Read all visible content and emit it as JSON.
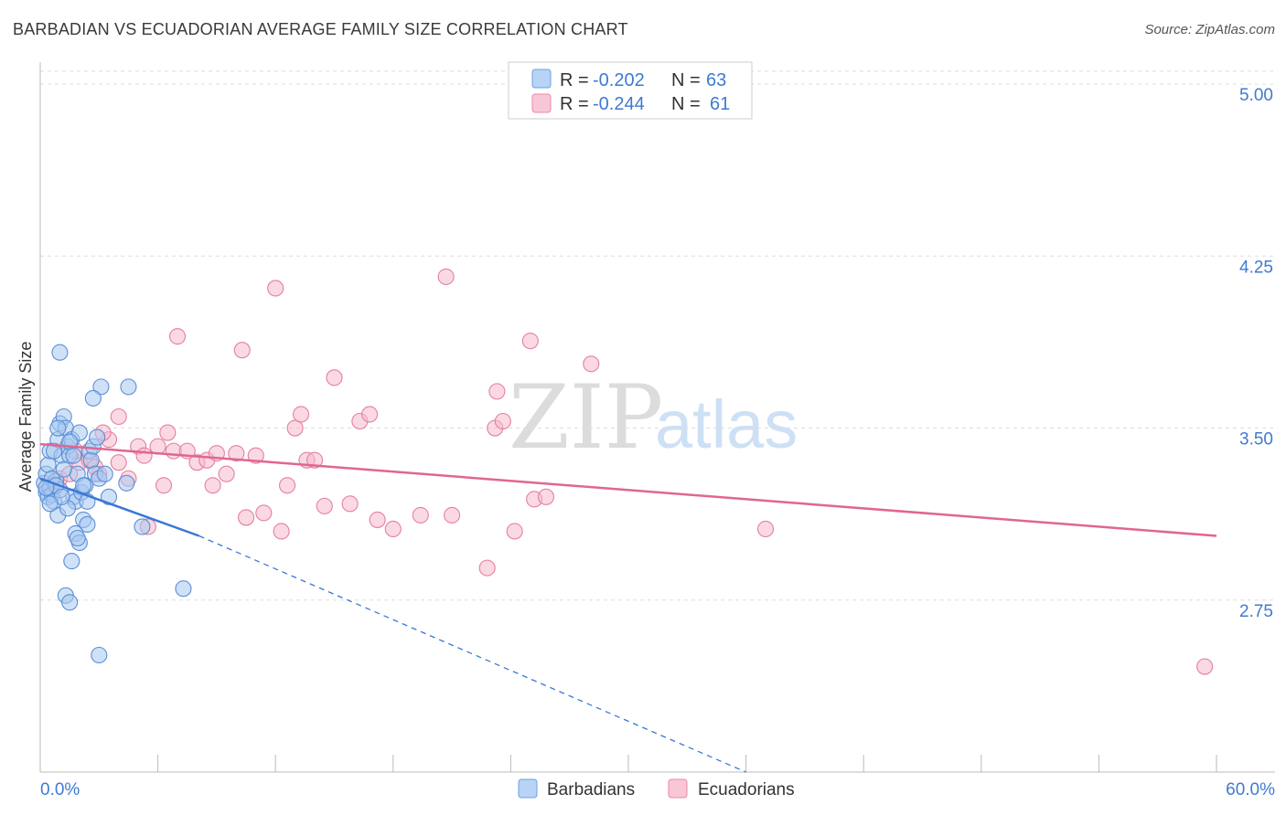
{
  "header": {
    "title": "BARBADIAN VS ECUADORIAN AVERAGE FAMILY SIZE CORRELATION CHART",
    "source": "Source: ZipAtlas.com"
  },
  "watermark": {
    "zip": "ZIP",
    "atlas": "atlas"
  },
  "legend_top": {
    "rows": [
      {
        "r_label": "R =",
        "r_value": "-0.202",
        "n_label": "N =",
        "n_value": "63"
      },
      {
        "r_label": "R =",
        "r_value": "-0.244",
        "n_label": "N =",
        "n_value": "61"
      }
    ]
  },
  "colors": {
    "blue_fill": "#a8c8f0",
    "blue_stroke": "#5b8fd6",
    "blue_line": "#3a78d6",
    "pink_fill": "#f6b9cc",
    "pink_stroke": "#e57fa0",
    "pink_line": "#e06690",
    "tick_text": "#3f7ad3",
    "grid": "#dddddd"
  },
  "chart_data": {
    "type": "scatter",
    "title": "BARBADIAN VS ECUADORIAN AVERAGE FAMILY SIZE CORRELATION CHART",
    "xlabel": "",
    "ylabel": "Average Family Size",
    "xlim": [
      0,
      60
    ],
    "ylim": [
      2.0,
      5.08
    ],
    "x_tick_labels": [
      "0.0%",
      "60.0%"
    ],
    "y_ticks": [
      2.75,
      3.5,
      4.25,
      5.0
    ],
    "y_tick_labels": [
      "2.75",
      "3.50",
      "4.25",
      "5.00"
    ],
    "series": [
      {
        "name": "Barbadians",
        "r": -0.202,
        "n": 63,
        "trend": {
          "x_start": 0,
          "y_start": 3.28,
          "x_end": 8.1,
          "y_end": 3.03,
          "dash_to_x": 36,
          "dash_to_y": 2.0
        },
        "points": [
          [
            0.2,
            3.26
          ],
          [
            0.3,
            3.22
          ],
          [
            0.4,
            3.2
          ],
          [
            0.5,
            3.24
          ],
          [
            0.3,
            3.3
          ],
          [
            0.6,
            3.21
          ],
          [
            0.4,
            3.34
          ],
          [
            0.5,
            3.4
          ],
          [
            0.7,
            3.18
          ],
          [
            0.8,
            3.27
          ],
          [
            0.9,
            3.45
          ],
          [
            1.0,
            3.52
          ],
          [
            1.1,
            3.38
          ],
          [
            1.0,
            3.23
          ],
          [
            1.2,
            3.55
          ],
          [
            1.3,
            3.5
          ],
          [
            1.4,
            3.42
          ],
          [
            1.5,
            3.38
          ],
          [
            1.6,
            3.45
          ],
          [
            1.7,
            3.2
          ],
          [
            1.8,
            3.18
          ],
          [
            1.9,
            3.3
          ],
          [
            2.0,
            3.48
          ],
          [
            2.1,
            3.22
          ],
          [
            2.2,
            3.1
          ],
          [
            2.3,
            3.25
          ],
          [
            2.4,
            3.08
          ],
          [
            2.5,
            3.4
          ],
          [
            2.6,
            3.36
          ],
          [
            2.7,
            3.42
          ],
          [
            2.8,
            3.3
          ],
          [
            2.9,
            3.46
          ],
          [
            3.0,
            3.28
          ],
          [
            3.1,
            3.68
          ],
          [
            3.3,
            3.3
          ],
          [
            3.5,
            3.2
          ],
          [
            4.4,
            3.26
          ],
          [
            4.5,
            3.68
          ],
          [
            1.0,
            3.83
          ],
          [
            2.7,
            3.63
          ],
          [
            0.9,
            3.12
          ],
          [
            1.4,
            3.15
          ],
          [
            1.8,
            3.04
          ],
          [
            2.0,
            3.0
          ],
          [
            1.6,
            2.92
          ],
          [
            1.3,
            2.77
          ],
          [
            1.5,
            2.74
          ],
          [
            7.3,
            2.8
          ],
          [
            3.0,
            2.51
          ],
          [
            5.2,
            3.07
          ],
          [
            0.6,
            3.28
          ],
          [
            0.8,
            3.25
          ],
          [
            1.1,
            3.2
          ],
          [
            1.2,
            3.32
          ],
          [
            1.5,
            3.44
          ],
          [
            0.7,
            3.4
          ],
          [
            0.9,
            3.5
          ],
          [
            1.7,
            3.38
          ],
          [
            2.2,
            3.25
          ],
          [
            2.4,
            3.18
          ],
          [
            0.5,
            3.17
          ],
          [
            0.3,
            3.24
          ],
          [
            1.9,
            3.02
          ]
        ]
      },
      {
        "name": "Ecuadorians",
        "r": -0.244,
        "n": 61,
        "trend": {
          "x_start": 0,
          "y_start": 3.43,
          "x_end": 60,
          "y_end": 3.03
        },
        "points": [
          [
            0.5,
            3.25
          ],
          [
            1.0,
            3.28
          ],
          [
            1.5,
            3.3
          ],
          [
            2.0,
            3.35
          ],
          [
            2.5,
            3.36
          ],
          [
            3.0,
            3.3
          ],
          [
            3.5,
            3.45
          ],
          [
            4.0,
            3.35
          ],
          [
            4.5,
            3.28
          ],
          [
            5.0,
            3.42
          ],
          [
            5.3,
            3.38
          ],
          [
            5.5,
            3.07
          ],
          [
            6.0,
            3.42
          ],
          [
            6.3,
            3.25
          ],
          [
            6.8,
            3.4
          ],
          [
            7.0,
            3.9
          ],
          [
            7.5,
            3.4
          ],
          [
            8.0,
            3.35
          ],
          [
            8.5,
            3.36
          ],
          [
            8.8,
            3.25
          ],
          [
            9.0,
            3.39
          ],
          [
            9.5,
            3.3
          ],
          [
            10.0,
            3.39
          ],
          [
            10.3,
            3.84
          ],
          [
            10.5,
            3.11
          ],
          [
            11.0,
            3.38
          ],
          [
            11.4,
            3.13
          ],
          [
            12.0,
            4.11
          ],
          [
            12.3,
            3.05
          ],
          [
            12.6,
            3.25
          ],
          [
            13.0,
            3.5
          ],
          [
            13.3,
            3.56
          ],
          [
            13.6,
            3.36
          ],
          [
            14.0,
            3.36
          ],
          [
            14.5,
            3.16
          ],
          [
            15.0,
            3.72
          ],
          [
            15.8,
            3.17
          ],
          [
            16.3,
            3.53
          ],
          [
            16.8,
            3.56
          ],
          [
            17.2,
            3.1
          ],
          [
            18.0,
            3.06
          ],
          [
            19.4,
            3.12
          ],
          [
            20.7,
            4.16
          ],
          [
            21.0,
            3.12
          ],
          [
            22.8,
            2.89
          ],
          [
            23.2,
            3.5
          ],
          [
            23.3,
            3.66
          ],
          [
            23.6,
            3.53
          ],
          [
            24.2,
            3.05
          ],
          [
            25.0,
            3.88
          ],
          [
            25.2,
            3.19
          ],
          [
            25.8,
            3.2
          ],
          [
            28.1,
            3.78
          ],
          [
            37.0,
            3.06
          ],
          [
            59.4,
            2.46
          ],
          [
            3.2,
            3.48
          ],
          [
            4.0,
            3.55
          ],
          [
            1.8,
            3.4
          ],
          [
            2.8,
            3.33
          ],
          [
            6.5,
            3.48
          ],
          [
            0.8,
            3.27
          ]
        ]
      }
    ]
  }
}
